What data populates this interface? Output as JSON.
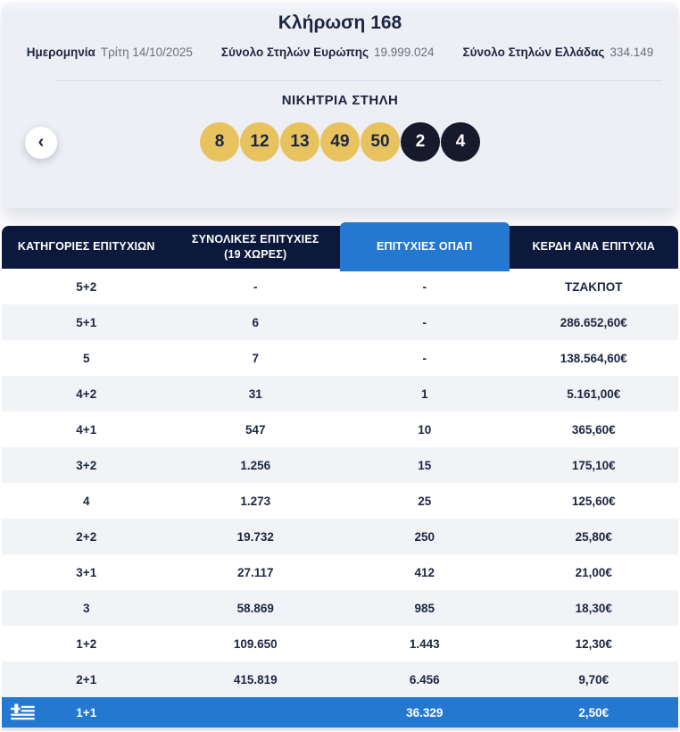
{
  "colors": {
    "accent_blue": "#2478d0",
    "header_navy": "#0b1a3c",
    "ball_gold": "#e8c25e",
    "ball_dark": "#171a2b",
    "card_bg": "#edeff5",
    "row_alt": "#f2f3f6",
    "text_navy": "#1c2642",
    "text_gray": "#6a7080"
  },
  "draw": {
    "title": "Κλήρωση 168",
    "meta": [
      {
        "label": "Ημερομηνία",
        "value": "Τρίτη 14/10/2025"
      },
      {
        "label": "Σύνολο Στηλών Ευρώπης",
        "value": "19.999.024"
      },
      {
        "label": "Σύνολο Στηλών Ελλάδας",
        "value": "334.149"
      }
    ],
    "winning_title": "ΝΙΚΗΤΡΙΑ ΣΤΗΛΗ",
    "main_numbers": [
      8,
      12,
      13,
      49,
      50
    ],
    "bonus_numbers": [
      2,
      4
    ],
    "prev_button": "‹"
  },
  "table": {
    "headers": [
      "ΚΑΤΗΓΟΡΙΕΣ ΕΠΙΤΥΧΙΩΝ",
      "ΣΥΝΟΛΙΚΕΣ ΕΠΙΤΥΧΙΕΣ\n(19 ΧΩΡΕΣ)",
      "ΕΠΙΤΥΧΙΕΣ ΟΠΑΠ",
      "ΚΕΡΔΗ ΑΝΑ ΕΠΙΤΥΧΙΑ"
    ],
    "highlighted_column": "ΕΠΙΤΥΧΙΕΣ ΟΠΑΠ",
    "rows": [
      {
        "category": "5+2",
        "total": "-",
        "opap": "-",
        "prize": "ΤΖΑΚΠΟΤ",
        "highlight": false
      },
      {
        "category": "5+1",
        "total": "6",
        "opap": "-",
        "prize": "286.652,60€",
        "highlight": false
      },
      {
        "category": "5",
        "total": "7",
        "opap": "-",
        "prize": "138.564,60€",
        "highlight": false
      },
      {
        "category": "4+2",
        "total": "31",
        "opap": "1",
        "prize": "5.161,00€",
        "highlight": false
      },
      {
        "category": "4+1",
        "total": "547",
        "opap": "10",
        "prize": "365,60€",
        "highlight": false
      },
      {
        "category": "3+2",
        "total": "1.256",
        "opap": "15",
        "prize": "175,10€",
        "highlight": false
      },
      {
        "category": "4",
        "total": "1.273",
        "opap": "25",
        "prize": "125,60€",
        "highlight": false
      },
      {
        "category": "2+2",
        "total": "19.732",
        "opap": "250",
        "prize": "25,80€",
        "highlight": false
      },
      {
        "category": "3+1",
        "total": "27.117",
        "opap": "412",
        "prize": "21,00€",
        "highlight": false
      },
      {
        "category": "3",
        "total": "58.869",
        "opap": "985",
        "prize": "18,30€",
        "highlight": false
      },
      {
        "category": "1+2",
        "total": "109.650",
        "opap": "1.443",
        "prize": "12,30€",
        "highlight": false
      },
      {
        "category": "2+1",
        "total": "415.819",
        "opap": "6.456",
        "prize": "9,70€",
        "highlight": false
      },
      {
        "category": "1+1",
        "total": "",
        "opap": "36.329",
        "prize": "2,50€",
        "highlight": true
      }
    ]
  }
}
